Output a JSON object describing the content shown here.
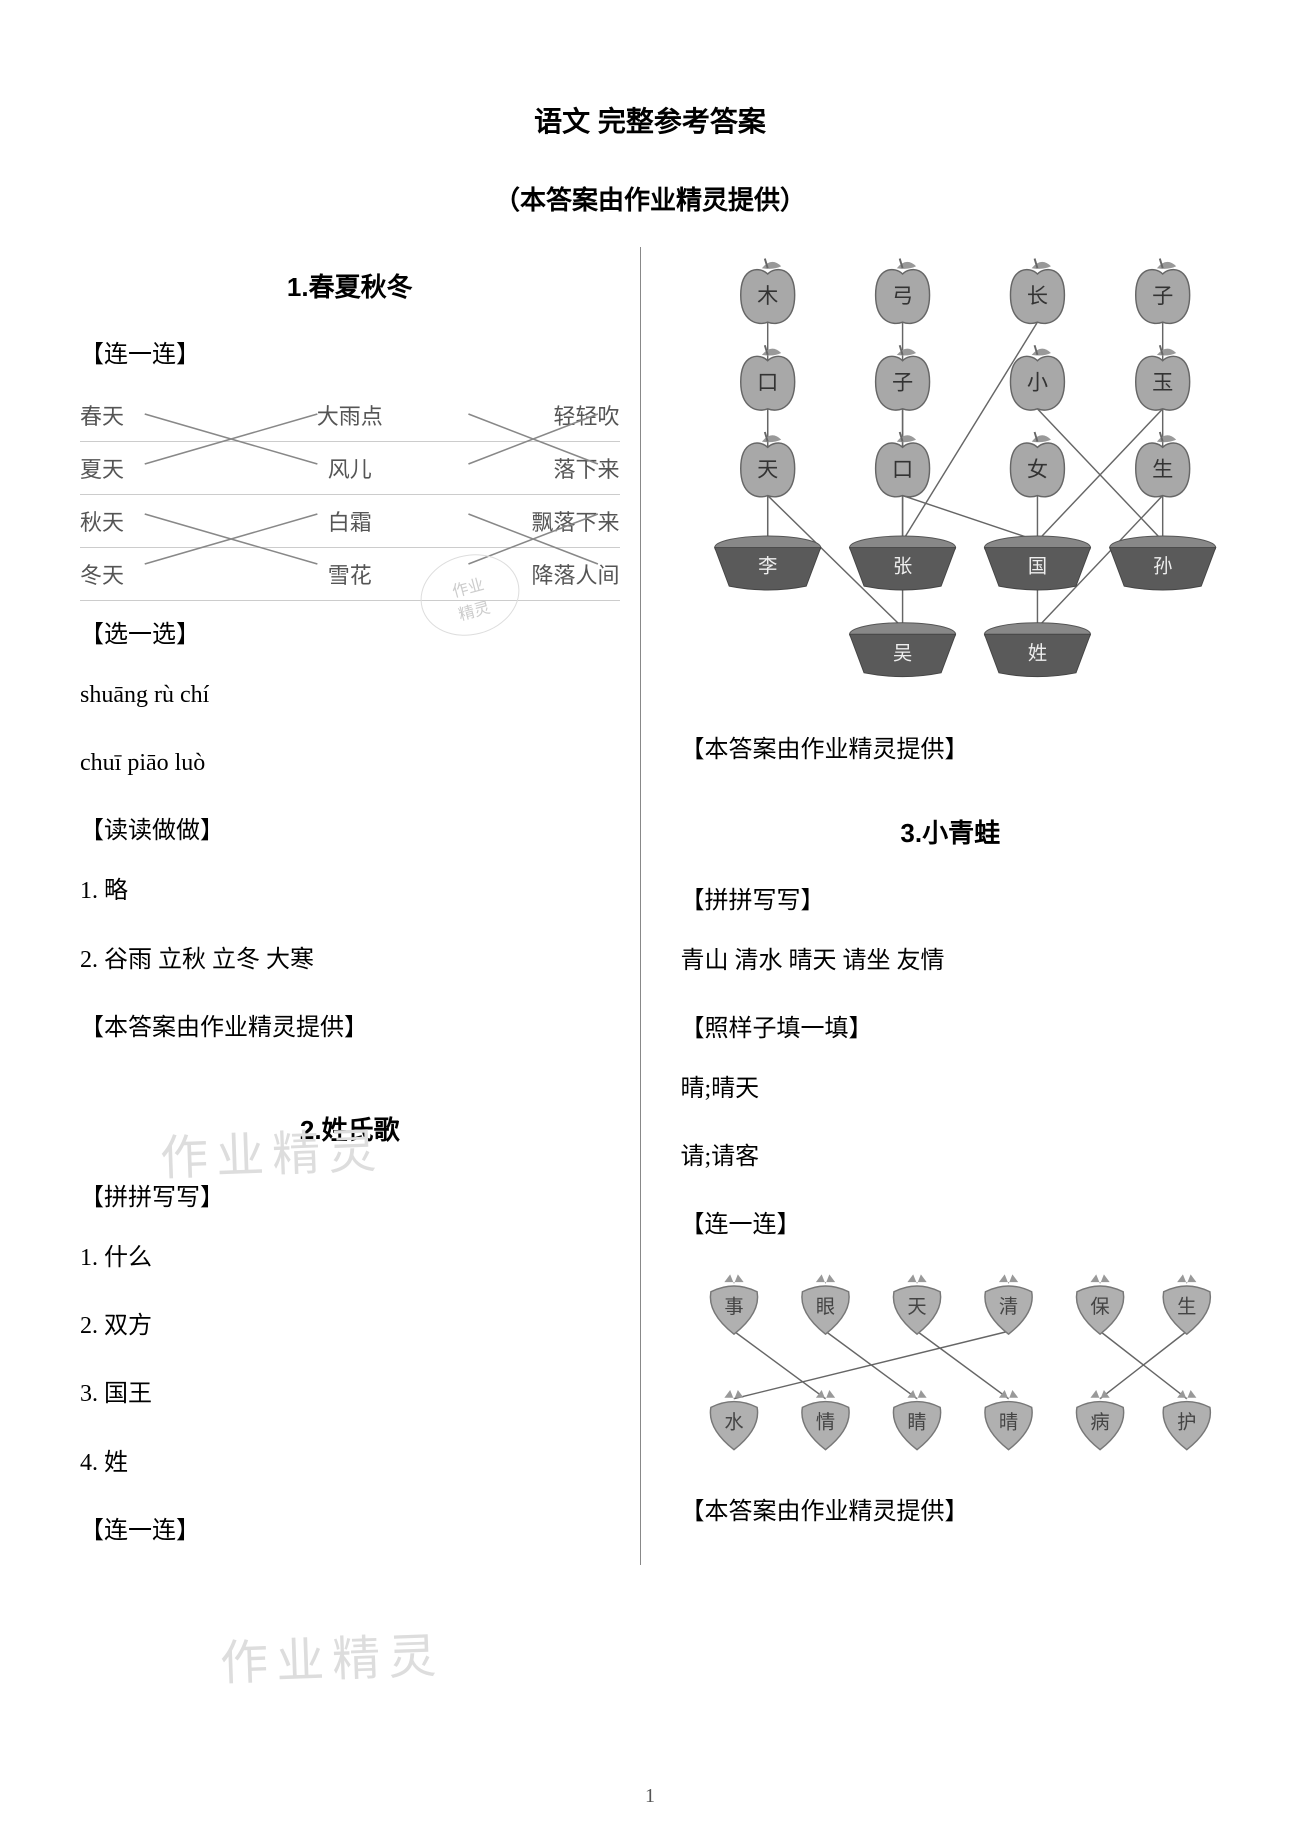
{
  "title_main": "语文 完整参考答案",
  "title_sub": "（本答案由作业精灵提供）",
  "page_number": "1",
  "watermark_text": "作业精灵",
  "stamp_line1": "作业",
  "stamp_line2": "精灵",
  "attribution": "【本答案由作业精灵提供】",
  "section1": {
    "title": "1.春夏秋冬",
    "h1": "【连一连】",
    "matching": {
      "col1": [
        "春天",
        "夏天",
        "秋天",
        "冬天"
      ],
      "col2": [
        "大雨点",
        "风儿",
        "白霜",
        "雪花"
      ],
      "col3": [
        "轻轻吹",
        "落下来",
        "飘落下来",
        "降落人间"
      ],
      "line_color": "#888888"
    },
    "h2": "【选一选】",
    "pinyin1": "shuāng  rù  chí",
    "pinyin2": "chuī  piāo  luò",
    "h3": "【读读做做】",
    "a1": "1. 略",
    "a2": "2. 谷雨  立秋  立冬  大寒"
  },
  "section2": {
    "title": "2.姓氏歌",
    "h1": "【拼拼写写】",
    "a1": "1. 什么",
    "a2": "2. 双方",
    "a3": "3. 国王",
    "a4": "4. 姓",
    "h2": "【连一连】",
    "apple_diagram": {
      "type": "network",
      "row1": [
        "木",
        "弓",
        "长",
        "子"
      ],
      "row2": [
        "口",
        "子",
        "小",
        "玉"
      ],
      "row3": [
        "天",
        "口",
        "女",
        "生"
      ],
      "baskets1": [
        "李",
        "张",
        "国",
        "孙"
      ],
      "baskets2": [
        "吴",
        "姓"
      ],
      "apple_fill": "#a8a8a8",
      "apple_stroke": "#666666",
      "leaf_fill": "#999999",
      "basket_fill": "#5a5a5a",
      "basket_rim": "#888888",
      "line_color": "#666666",
      "text_color": "#333333",
      "edges": [
        [
          0,
          0,
          "b1",
          0
        ],
        [
          1,
          0,
          "b1",
          0
        ],
        [
          0,
          1,
          "b1",
          1
        ],
        [
          0,
          2,
          "b1",
          1
        ],
        [
          1,
          1,
          "b2",
          0
        ],
        [
          2,
          0,
          "b2",
          0
        ],
        [
          1,
          2,
          "b1",
          3
        ],
        [
          0,
          3,
          "b1",
          3
        ],
        [
          2,
          2,
          "b2",
          1
        ],
        [
          2,
          3,
          "b2",
          1
        ],
        [
          1,
          3,
          "b1",
          2
        ],
        [
          2,
          1,
          "b1",
          2
        ]
      ]
    }
  },
  "section3": {
    "title": "3.小青蛙",
    "h1": "【拼拼写写】",
    "words": "青山  清水  晴天  请坐  友情",
    "h2": "【照样子填一填】",
    "f1": "晴;晴天",
    "f2": "请;请客",
    "h3": "【连一连】",
    "berry_diagram": {
      "type": "network",
      "top": [
        "事",
        "眼",
        "天",
        "清",
        "保",
        "生"
      ],
      "bottom": [
        "水",
        "情",
        "睛",
        "晴",
        "病",
        "护"
      ],
      "berry_fill": "#b0b0b0",
      "berry_stroke": "#777777",
      "leaf_fill": "#999999",
      "line_color": "#666666",
      "text_color": "#444444",
      "edges": [
        [
          0,
          1
        ],
        [
          1,
          2
        ],
        [
          2,
          3
        ],
        [
          3,
          0
        ],
        [
          4,
          5
        ],
        [
          5,
          4
        ]
      ]
    }
  }
}
